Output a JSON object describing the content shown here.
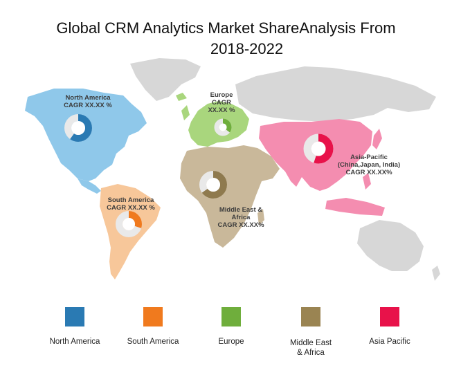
{
  "title": {
    "line1": "Global CRM Analytics Market ShareAnalysis From",
    "line2": "2018-2022"
  },
  "colors": {
    "north_america": "#8fc8ea",
    "south_america": "#f7c79a",
    "europe": "#a9d67d",
    "middle_east_africa": "#c9b89a",
    "asia_pacific": "#f48db0",
    "other": "#d7d7d7"
  },
  "regions": [
    {
      "key": "north_america",
      "label": "North America\nCAGR XX.XX %",
      "share": 0.6,
      "ring_color": "#2a7ab3"
    },
    {
      "key": "europe",
      "label": "Europe\nCAGR\nXX.XX %",
      "share": 0.35,
      "ring_color": "#6fae3c"
    },
    {
      "key": "asia_pacific",
      "label": "Asia-Pacific\n(China,Japan, India)\nCAGR XX.XX%",
      "share": 0.55,
      "ring_color": "#e8124a"
    },
    {
      "key": "middle_east_africa",
      "label": "Middle East &\nAfrica\nCAGR XX.XX%",
      "share": 0.65,
      "ring_color": "#8f7a4e"
    },
    {
      "key": "south_america",
      "label": "South America\nCAGR XX.XX %",
      "share": 0.3,
      "ring_color": "#f07a1e"
    }
  ],
  "legend": [
    {
      "label": "North America",
      "color": "#2a7ab3"
    },
    {
      "label": "South America",
      "color": "#f07a1e"
    },
    {
      "label": "Europe",
      "color": "#6fae3c"
    },
    {
      "label": "Middle East\n& Africa",
      "color": "#9a8452"
    },
    {
      "label": "Asia Pacific",
      "color": "#e8124a"
    }
  ]
}
